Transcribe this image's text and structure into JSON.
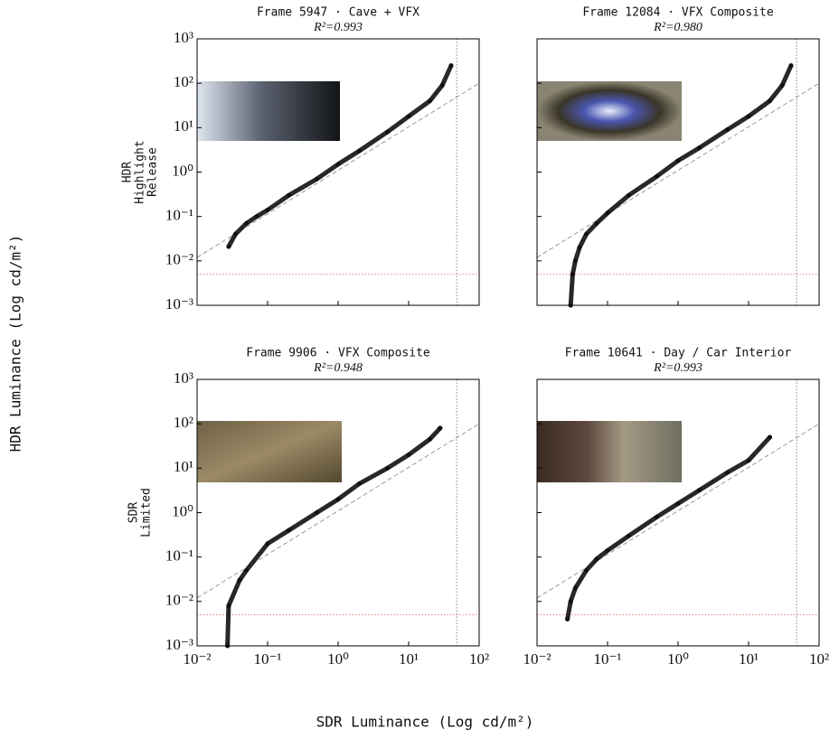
{
  "figure": {
    "ylabel": "HDR Luminance (Log cd/m²)",
    "xlabel": "SDR Luminance (Log cd/m²)"
  },
  "chart_data": [
    {
      "type": "scatter",
      "title": "Frame 5947 · Cave + VFX",
      "subtitle": "R²=0.993",
      "row_label": [
        "HDR",
        "Highlight",
        "Release"
      ],
      "log_scale": true,
      "color": "#111111",
      "x": [
        0.028,
        0.035,
        0.05,
        0.07,
        0.1,
        0.2,
        0.5,
        1,
        2,
        5,
        10,
        20,
        30,
        40
      ],
      "y": [
        0.021,
        0.04,
        0.07,
        0.1,
        0.14,
        0.3,
        0.7,
        1.5,
        3,
        8,
        18,
        40,
        90,
        250
      ],
      "xlim": [
        0.01,
        100
      ],
      "ylim": [
        0.001,
        1000
      ],
      "xticks": [
        0.01,
        0.1,
        1,
        10,
        100
      ],
      "yticks": [
        {
          "value": 0.001,
          "label": "10⁻³"
        },
        {
          "value": 0.01,
          "label": "10⁻²"
        },
        {
          "value": 0.1,
          "label": "10⁻¹"
        },
        {
          "value": 1,
          "label": "10⁰"
        },
        {
          "value": 10,
          "label": "10¹"
        },
        {
          "value": 100,
          "label": "10²"
        },
        {
          "value": 1000,
          "label": "10³"
        }
      ],
      "diagonal": {
        "x": [
          0.01,
          100
        ],
        "y": [
          0.012,
          100
        ]
      },
      "hline": 0.005,
      "vline": 48
    },
    {
      "type": "scatter",
      "title": "Frame 12084 · VFX Composite",
      "subtitle": "R²=0.980",
      "log_scale": true,
      "color": "#111111",
      "x": [
        0.03,
        0.032,
        0.035,
        0.04,
        0.05,
        0.07,
        0.1,
        0.2,
        0.5,
        1,
        2,
        5,
        10,
        20,
        30,
        40
      ],
      "y": [
        0.001,
        0.005,
        0.01,
        0.02,
        0.04,
        0.07,
        0.12,
        0.3,
        0.8,
        1.8,
        3.5,
        9,
        18,
        40,
        90,
        250
      ],
      "xlim": [
        0.01,
        100
      ],
      "ylim": [
        0.001,
        1000
      ],
      "xticks": [
        0.01,
        0.1,
        1,
        10,
        100
      ],
      "yticks": [
        0.001,
        0.01,
        0.1,
        1,
        10,
        100,
        1000
      ],
      "diagonal": {
        "x": [
          0.01,
          100
        ],
        "y": [
          0.012,
          100
        ]
      },
      "hline": 0.005,
      "vline": 48
    },
    {
      "type": "scatter",
      "title": "Frame 9906 · VFX Composite",
      "subtitle": "R²=0.948",
      "row_label": [
        "SDR",
        "Limited"
      ],
      "log_scale": true,
      "color": "#111111",
      "x": [
        0.027,
        0.028,
        0.04,
        0.05,
        0.1,
        0.2,
        0.5,
        1,
        2,
        5,
        10,
        20,
        28
      ],
      "y": [
        0.001,
        0.008,
        0.03,
        0.05,
        0.2,
        0.4,
        1,
        2,
        4.5,
        10,
        20,
        45,
        80
      ],
      "xlim": [
        0.01,
        100
      ],
      "ylim": [
        0.001,
        1000
      ],
      "xticks": [
        {
          "value": 0.01,
          "label": "10⁻²"
        },
        {
          "value": 0.1,
          "label": "10⁻¹"
        },
        {
          "value": 1,
          "label": "10⁰"
        },
        {
          "value": 10,
          "label": "10¹"
        },
        {
          "value": 100,
          "label": "10²"
        }
      ],
      "yticks": [
        {
          "value": 0.001,
          "label": "10⁻³"
        },
        {
          "value": 0.01,
          "label": "10⁻²"
        },
        {
          "value": 0.1,
          "label": "10⁻¹"
        },
        {
          "value": 1,
          "label": "10⁰"
        },
        {
          "value": 10,
          "label": "10¹"
        },
        {
          "value": 100,
          "label": "10²"
        },
        {
          "value": 1000,
          "label": "10³"
        }
      ],
      "diagonal": {
        "x": [
          0.01,
          100
        ],
        "y": [
          0.012,
          100
        ]
      },
      "hline": 0.005,
      "vline": 48
    },
    {
      "type": "scatter",
      "title": "Frame 10641 · Day / Car Interior",
      "subtitle": "R²=0.993",
      "log_scale": true,
      "color": "#111111",
      "x": [
        0.027,
        0.03,
        0.035,
        0.05,
        0.07,
        0.1,
        0.2,
        0.5,
        1,
        2,
        5,
        10,
        20
      ],
      "y": [
        0.004,
        0.01,
        0.02,
        0.05,
        0.09,
        0.14,
        0.3,
        0.8,
        1.6,
        3.2,
        8,
        15,
        50
      ],
      "xlim": [
        0.01,
        100
      ],
      "ylim": [
        0.001,
        1000
      ],
      "xticks": [
        {
          "value": 0.01,
          "label": "10⁻²"
        },
        {
          "value": 0.1,
          "label": "10⁻¹"
        },
        {
          "value": 1,
          "label": "10⁰"
        },
        {
          "value": 10,
          "label": "10¹"
        },
        {
          "value": 100,
          "label": "10²"
        }
      ],
      "yticks": [
        0.001,
        0.01,
        0.1,
        1,
        10,
        100,
        1000
      ],
      "diagonal": {
        "x": [
          0.01,
          100
        ],
        "y": [
          0.012,
          100
        ]
      },
      "hline": 0.005,
      "vline": 48
    }
  ]
}
